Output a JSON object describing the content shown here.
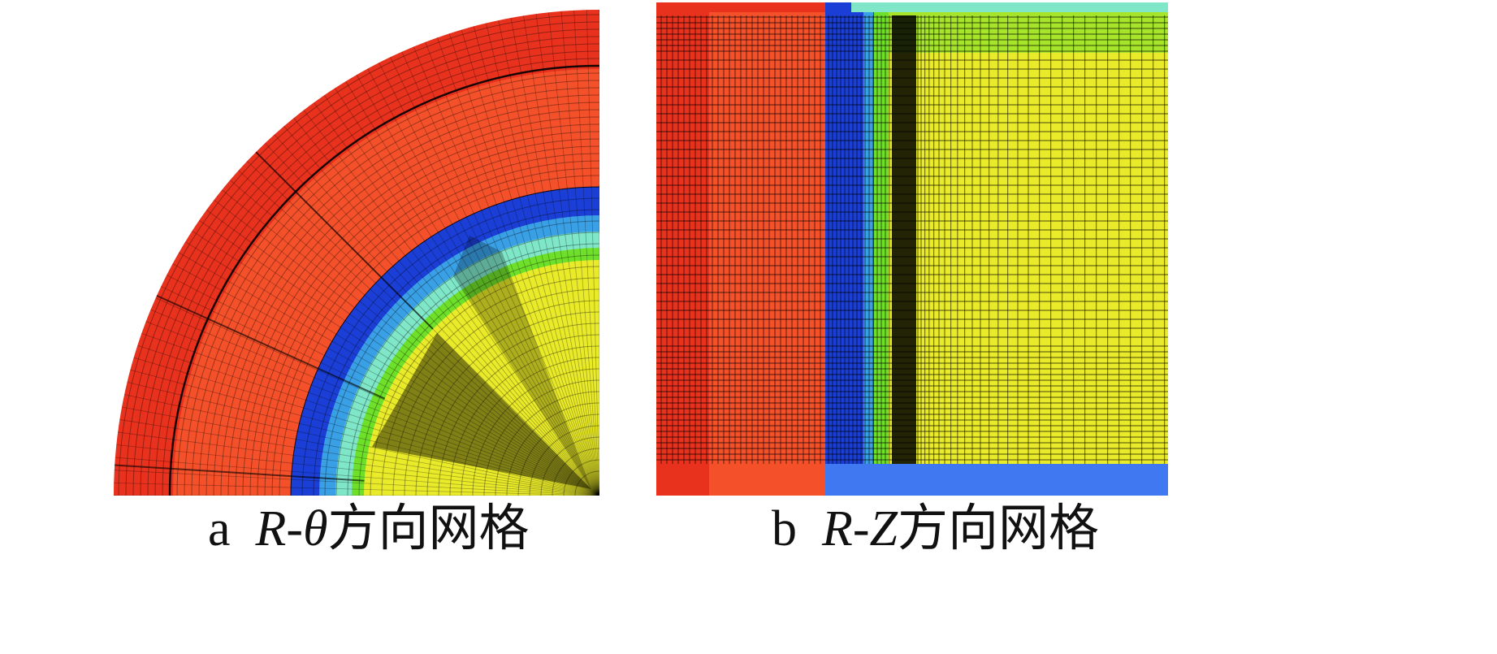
{
  "panels": [
    {
      "letter": "a",
      "var1": "R",
      "sep": "-",
      "var2": "θ",
      "suffix": "方向网格"
    },
    {
      "letter": "b",
      "var1": "R",
      "sep": "-",
      "var2": "Z",
      "suffix": "方向网格"
    }
  ],
  "colors": {
    "outer_red": "#e8321e",
    "orange": "#f4512a",
    "blue": "#1b3fd6",
    "light_blue": "#3aa0e6",
    "cyan": "#7fe6c8",
    "green": "#6fe02a",
    "yellow": "#e9ea2a",
    "bottom_blue": "#3f78f0",
    "grid_line": "#000000"
  }
}
